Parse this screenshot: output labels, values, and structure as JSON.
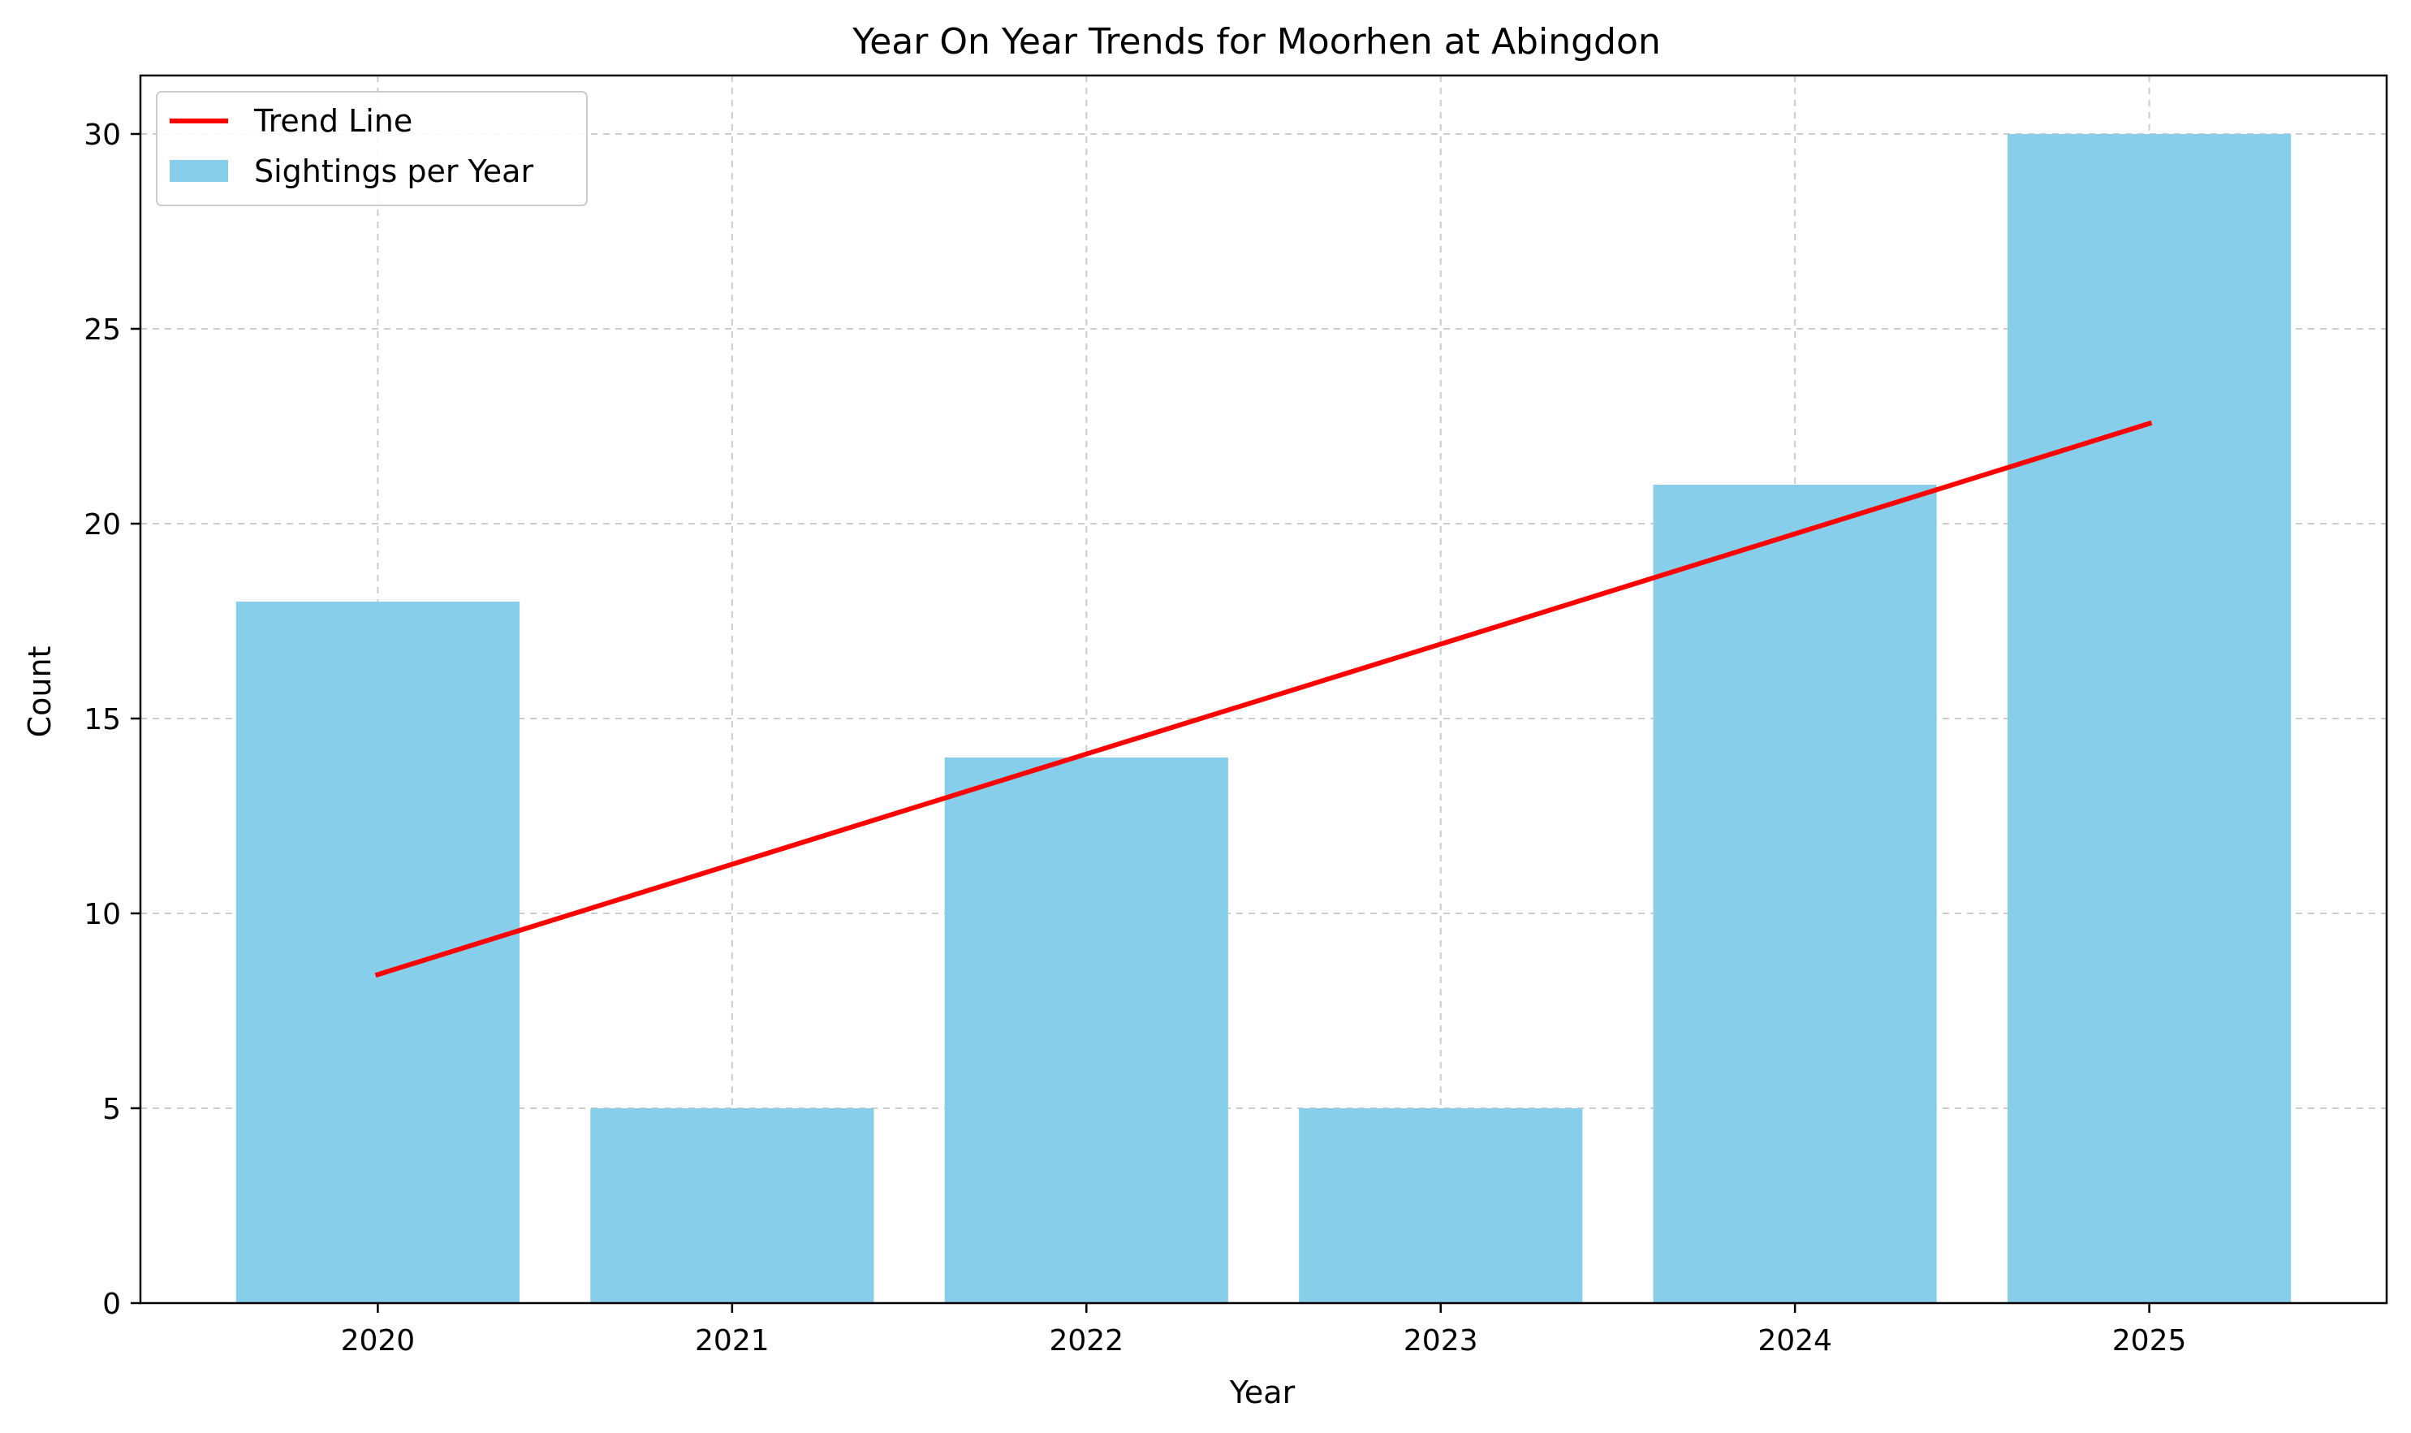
{
  "chart_data": {
    "type": "bar",
    "title": "Year On Year Trends for Moorhen at Abingdon",
    "xlabel": "Year",
    "ylabel": "Count",
    "categories": [
      "2020",
      "2021",
      "2022",
      "2023",
      "2024",
      "2025"
    ],
    "series": [
      {
        "name": "Sightings per Year",
        "type": "bar",
        "values": [
          18,
          5,
          14,
          5,
          21,
          30
        ],
        "color": "#87ceeb"
      },
      {
        "name": "Trend Line",
        "type": "line",
        "values": [
          8.43,
          11.26,
          14.09,
          16.91,
          19.74,
          22.57
        ],
        "color": "#ff0000"
      }
    ],
    "ylim": [
      0,
      31.5
    ],
    "yticks": [
      0,
      5,
      10,
      15,
      20,
      25,
      30
    ],
    "grid": true,
    "legend_position": "top-left"
  }
}
